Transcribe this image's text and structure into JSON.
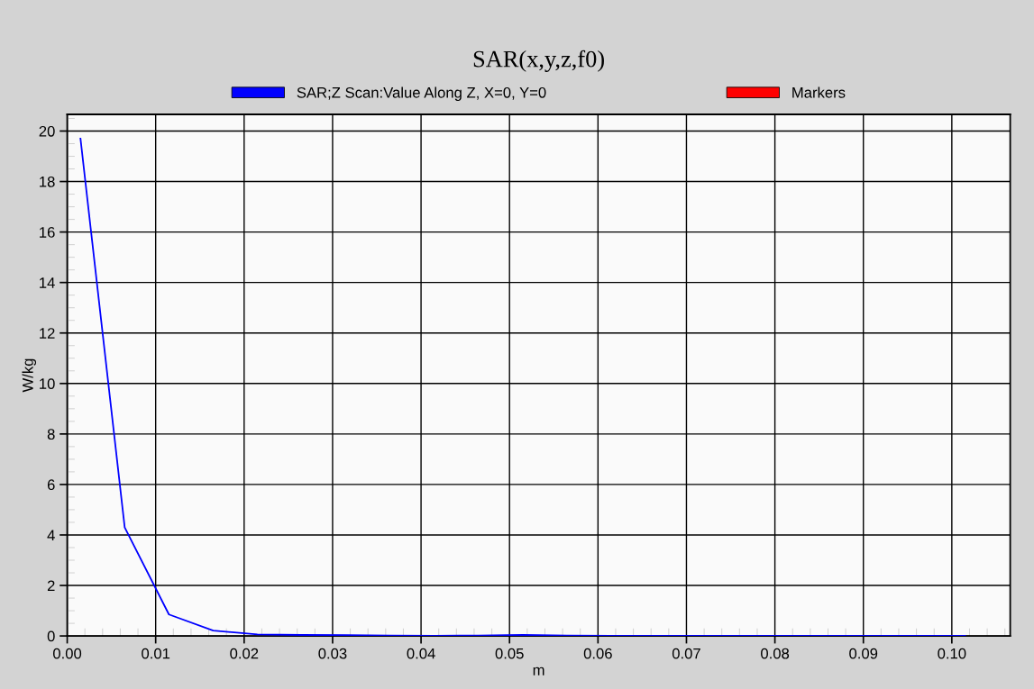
{
  "chart_data": {
    "type": "line",
    "title": "SAR(x,y,z,f0)",
    "xlabel": "m",
    "ylabel": "W/kg",
    "x": [
      0.0015,
      0.0065,
      0.0115,
      0.0165,
      0.0215,
      0.0265,
      0.0315,
      0.0365,
      0.0415,
      0.0465,
      0.0515,
      0.0565,
      0.0615,
      0.0665,
      0.0715,
      0.0765,
      0.0815,
      0.0865,
      0.0915,
      0.0965,
      0.1015
    ],
    "series": [
      {
        "name": "SAR;Z Scan:Value Along Z, X=0, Y=0",
        "color": "#0000ff",
        "values": [
          19.7,
          4.3,
          0.85,
          0.21,
          0.06,
          0.04,
          0.03,
          0.02,
          0.01,
          0.02,
          0.04,
          0.02,
          0.01,
          0.01,
          0.01,
          0.01,
          0.01,
          0.01,
          0.01,
          0.01,
          0.01
        ]
      },
      {
        "name": "Markers",
        "color": "#ff0000",
        "values": [
          null,
          null,
          null,
          null,
          null,
          null,
          null,
          null,
          null,
          null,
          null,
          null,
          null,
          null,
          null,
          null,
          null,
          null,
          null,
          null,
          null
        ]
      }
    ],
    "xlim": [
      0,
      0.1066
    ],
    "ylim": [
      0,
      20.66
    ],
    "xticks": [
      {
        "value": 0,
        "label": "0.00"
      },
      {
        "value": 0.01,
        "label": "0.01"
      },
      {
        "value": 0.02,
        "label": "0.02"
      },
      {
        "value": 0.03,
        "label": "0.03"
      },
      {
        "value": 0.04,
        "label": "0.04"
      },
      {
        "value": 0.05,
        "label": "0.05"
      },
      {
        "value": 0.06,
        "label": "0.06"
      },
      {
        "value": 0.07,
        "label": "0.07"
      },
      {
        "value": 0.08,
        "label": "0.08"
      },
      {
        "value": 0.09,
        "label": "0.09"
      },
      {
        "value": 0.1,
        "label": "0.10"
      }
    ],
    "yticks": [
      0,
      2,
      4,
      6,
      8,
      10,
      12,
      14,
      16,
      18,
      20
    ],
    "grid": true,
    "legend": "top",
    "marker": "none",
    "line_style": "solid"
  }
}
